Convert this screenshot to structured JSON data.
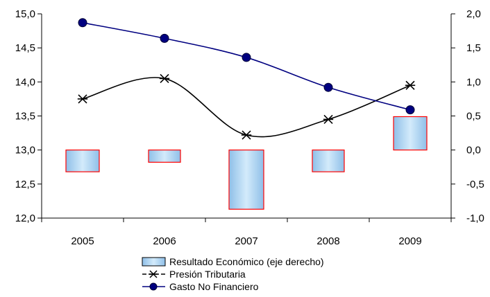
{
  "chart_data": {
    "type": "bar+line",
    "categories": [
      "2005",
      "2006",
      "2007",
      "2008",
      "2009"
    ],
    "left_axis": {
      "ylim": [
        12.0,
        15.0
      ],
      "ticks": [
        "15,0",
        "14,5",
        "14,0",
        "13,5",
        "13,0",
        "12,5",
        "12,0"
      ]
    },
    "right_axis": {
      "ylim": [
        -1.0,
        2.0
      ],
      "ticks": [
        "2,0",
        "1,5",
        "1,0",
        "0,5",
        "0,0",
        "-0,5",
        "-1,0"
      ]
    },
    "series": [
      {
        "name": "Resultado Económico (eje derecho)",
        "kind": "bar",
        "axis": "right",
        "values": [
          -0.32,
          -0.18,
          -0.87,
          -0.32,
          0.49
        ]
      },
      {
        "name": "Presión Tributaria",
        "kind": "line",
        "axis": "left",
        "marker": "asterisk",
        "values": [
          13.75,
          14.05,
          13.22,
          13.45,
          13.95
        ]
      },
      {
        "name": "Gasto No Financiero",
        "kind": "line",
        "axis": "left",
        "marker": "circle",
        "values": [
          14.87,
          14.64,
          14.36,
          13.92,
          13.59
        ]
      }
    ],
    "colors": {
      "bar_fill_light": "#c9e4f8",
      "bar_fill_dark": "#6fa8dc",
      "bar_border": "#ff0000",
      "presion_line": "#000000",
      "gasto_line": "#000080",
      "gasto_marker": "#000080"
    },
    "grid": false,
    "legend_placement": "bottom-center"
  }
}
